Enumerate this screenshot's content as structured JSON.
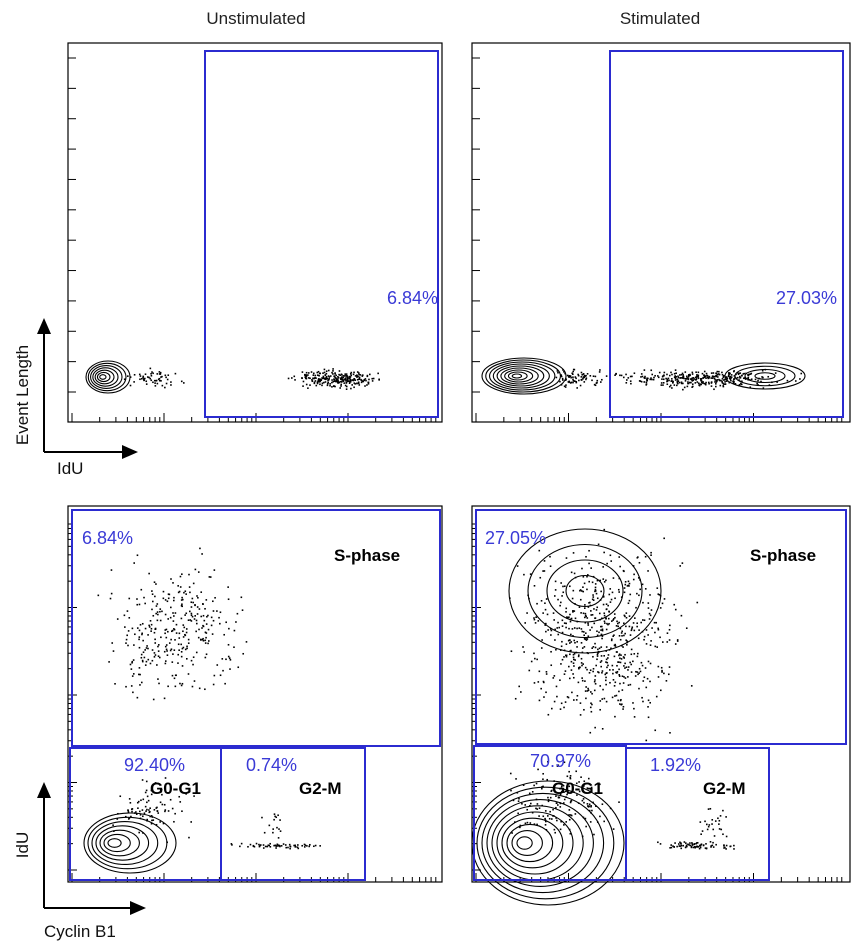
{
  "columns": [
    "Unstimulated",
    "Stimulated"
  ],
  "axes": {
    "top": {
      "y_label": "Event Length",
      "x_label": "IdU"
    },
    "bottom": {
      "y_label": "IdU",
      "x_label": "Cyclin B1"
    }
  },
  "chart_data": [
    {
      "type": "scatter",
      "panel": "top-left",
      "condition": "Unstimulated",
      "xlabel": "IdU",
      "ylabel": "Event Length",
      "xscale": "log",
      "gates": [
        {
          "name": "",
          "percent": "6.84%"
        }
      ]
    },
    {
      "type": "scatter",
      "panel": "top-right",
      "condition": "Stimulated",
      "xlabel": "IdU",
      "ylabel": "Event Length",
      "xscale": "log",
      "gates": [
        {
          "name": "",
          "percent": "27.03%"
        }
      ]
    },
    {
      "type": "scatter",
      "panel": "bottom-left",
      "condition": "Unstimulated",
      "xlabel": "Cyclin B1",
      "ylabel": "IdU",
      "xscale": "log",
      "yscale": "log",
      "gates": [
        {
          "name": "S-phase",
          "percent": "6.84%"
        },
        {
          "name": "G0-G1",
          "percent": "92.40%"
        },
        {
          "name": "G2-M",
          "percent": "0.74%"
        }
      ]
    },
    {
      "type": "scatter",
      "panel": "bottom-right",
      "condition": "Stimulated",
      "xlabel": "Cyclin B1",
      "ylabel": "IdU",
      "xscale": "log",
      "yscale": "log",
      "gates": [
        {
          "name": "S-phase",
          "percent": "27.05%"
        },
        {
          "name": "G0-G1",
          "percent": "70.97%"
        },
        {
          "name": "G2-M",
          "percent": "1.92%"
        }
      ]
    }
  ],
  "colors": {
    "gate": "#2b2bd0",
    "gate_text": "#3a3ad6",
    "points": "#000000"
  }
}
